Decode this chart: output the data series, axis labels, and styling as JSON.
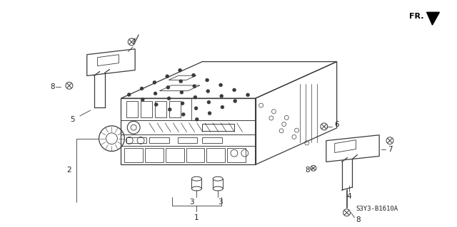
{
  "bg_color": "#ffffff",
  "line_color": "#3a3a3a",
  "text_color": "#222222",
  "fig_width": 6.4,
  "fig_height": 3.19,
  "part_code": "S3Y3-B1610A",
  "fr_label": "FR."
}
